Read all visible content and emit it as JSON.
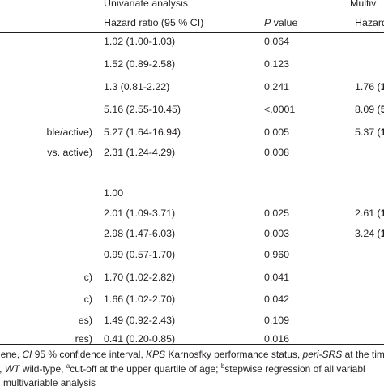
{
  "header": {
    "univariate": "Univariate analysis",
    "multivariable": "Multiv",
    "hazard_ratio": "Hazard ratio (95 % CI)",
    "p_value": "P",
    "p_value_suffix": " value",
    "hazard_right": "Hazard"
  },
  "rows": [
    {
      "label": "",
      "hr": "1.02 (1.00-1.03)",
      "p": "0.064",
      "mv": "",
      "mv_bold": ""
    },
    {
      "label": "",
      "hr": "1.52 (0.89-2.58)",
      "p": "0.123",
      "mv": "",
      "mv_bold": ""
    },
    {
      "label": "",
      "hr": "1.3 (0.81-2.22)",
      "p": "0.241",
      "mv": "1.76 (",
      "mv_bold": "1"
    },
    {
      "label": "",
      "hr": "5.16 (2.55-10.45)",
      "p": "<.0001",
      "mv": "8.09 (",
      "mv_bold": "5"
    },
    {
      "label": "ble/active)",
      "hr": "5.27 (1.64-16.94)",
      "p": "0.005",
      "mv": "5.37 (",
      "mv_bold": "1"
    },
    {
      "label": "vs. active)",
      "hr": "2.31 (1.24-4.29)",
      "p": "0.008",
      "mv": "",
      "mv_bold": ""
    },
    {
      "label": "",
      "hr": "",
      "p": "",
      "mv": "",
      "mv_bold": ""
    },
    {
      "label": "",
      "hr": "1.00",
      "p": "",
      "mv": "",
      "mv_bold": ""
    },
    {
      "label": "",
      "hr": "2.01 (1.09-3.71)",
      "p": "0.025",
      "mv": "2.61 (",
      "mv_bold": "1"
    },
    {
      "label": "",
      "hr": "2.98 (1.47-6.03)",
      "p": "0.003",
      "mv": "3.24 (",
      "mv_bold": "1"
    },
    {
      "label": "",
      "hr": "0.99 (0.57-1.70)",
      "p": "0.960",
      "mv": "",
      "mv_bold": ""
    },
    {
      "label": "c)",
      "hr": "1.70 (1.02-2.82)",
      "p": "0.041",
      "mv": "",
      "mv_bold": ""
    },
    {
      "label": "c)",
      "hr": "1.66 (1.02-2.70)",
      "p": "0.042",
      "mv": "",
      "mv_bold": ""
    },
    {
      "label": "es)",
      "hr": "1.49 (0.92-2.43)",
      "p": "0.109",
      "mv": "",
      "mv_bold": ""
    },
    {
      "label": "res)",
      "hr": "0.41 (0.20-0.85)",
      "p": "0.016",
      "mv": "",
      "mv_bold": ""
    }
  ],
  "footnotes": {
    "line1_a": "gene, ",
    "line1_b": "CI",
    "line1_c": " 95 % confidence interval, ",
    "line1_d": "KPS",
    "line1_e": " Karnosfky performance status, ",
    "line1_f": "peri-SRS",
    "line1_g": " at the tim",
    "line2_a": "y, ",
    "line2_b": "WT",
    "line2_c": " wild-type, ",
    "line2_sup_a": "a",
    "line2_d": "cut-off at the upper quartile of age; ",
    "line2_sup_b": "b",
    "line2_e": "stepwise regression of all variabl",
    "line3": "n multivariable analysis"
  }
}
